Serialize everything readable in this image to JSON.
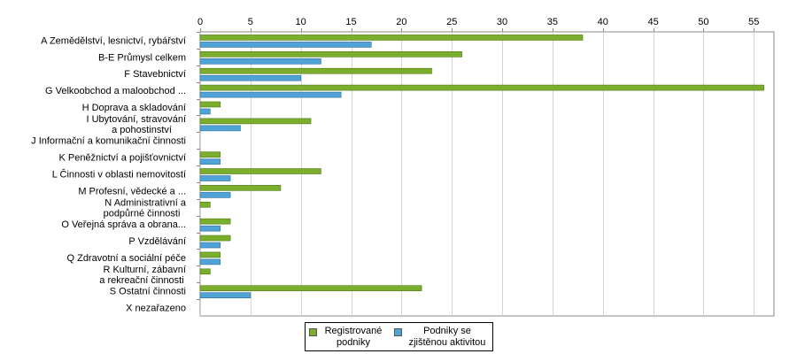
{
  "chart_data": {
    "type": "bar",
    "orientation": "horizontal",
    "categories": [
      "A Zemědělství, lesnictví, rybářství",
      "B-E Průmysl celkem",
      "F Stavebnictví",
      "G Velkoobchod a maloobchod ...",
      "H Doprava a skladování",
      "I Ubytování, stravování a pohostinství",
      "J Informační a komunikační činnosti",
      "K Peněžnictví a pojišťovnictví",
      "L Činnosti v oblasti nemovitostí",
      "M Profesní, vědecké a ...",
      "N Administrativní a podpůrné činnosti",
      "O Veřejná správa a obrana...",
      "P Vzdělávání",
      "Q  Zdravotní a sociální péče",
      "R Kulturní, zábavní a rekreační činnosti",
      "S Ostatní činnosti",
      "X nezařazeno"
    ],
    "category_lines": [
      [
        "A Zemědělství, lesnictví, rybářství"
      ],
      [
        "B-E Průmysl celkem"
      ],
      [
        "F Stavebnictví"
      ],
      [
        "G Velkoobchod a maloobchod ..."
      ],
      [
        "H Doprava a skladování"
      ],
      [
        "I Ubytování, stravování",
        "a pohostinství"
      ],
      [
        "J Informační a komunikační činnosti"
      ],
      [
        "K Peněžnictví a pojišťovnictví"
      ],
      [
        "L Činnosti v oblasti nemovitostí"
      ],
      [
        "M Profesní, vědecké a ..."
      ],
      [
        "N Administrativní a",
        "podpůrné činnosti"
      ],
      [
        "O Veřejná správa a obrana..."
      ],
      [
        "P Vzdělávání"
      ],
      [
        "Q  Zdravotní a sociální péče"
      ],
      [
        "R Kulturní, zábavní",
        "a rekreační činnosti"
      ],
      [
        "S Ostatní činnosti"
      ],
      [
        "X nezařazeno"
      ]
    ],
    "series": [
      {
        "name": "Registrované podniky",
        "legend_lines": [
          "Registrované",
          "podniky"
        ],
        "color": "#7aae2c",
        "values": [
          38,
          26,
          23,
          56,
          2,
          11,
          0,
          2,
          12,
          8,
          1,
          3,
          3,
          2,
          1,
          22,
          0
        ]
      },
      {
        "name": "Podniky se zjištěnou aktivitou",
        "legend_lines": [
          "Podniky se",
          "zjištěnou aktivitou"
        ],
        "color": "#4fa3d6",
        "values": [
          17,
          12,
          10,
          14,
          1,
          4,
          0,
          2,
          3,
          3,
          0,
          2,
          2,
          2,
          0,
          5,
          0
        ]
      }
    ],
    "xlim": [
      0,
      57
    ],
    "xticks": [
      0,
      5,
      10,
      15,
      20,
      25,
      30,
      35,
      40,
      45,
      50,
      55
    ],
    "xaxis_position": "top",
    "grid": true,
    "legend_position": "bottom",
    "title": "",
    "xlabel": "",
    "ylabel": ""
  }
}
